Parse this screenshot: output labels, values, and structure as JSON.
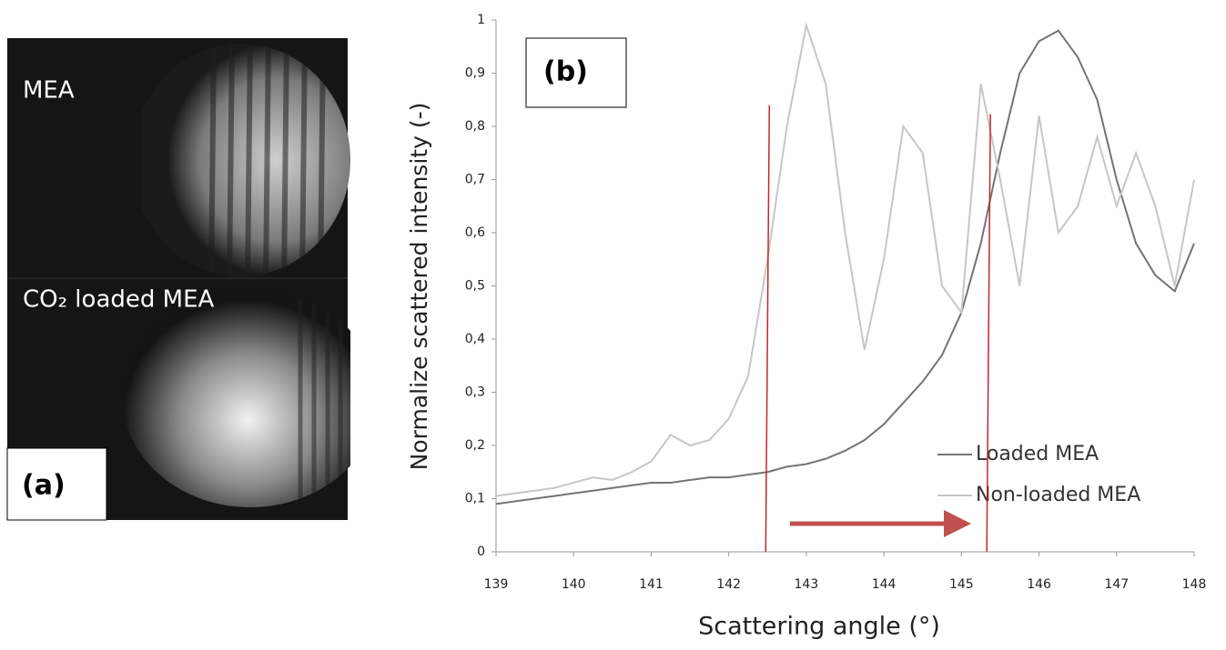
{
  "image_panel": {
    "top_label": "MEA",
    "bottom_label": "CO₂ loaded MEA",
    "panel_label": "(a)"
  },
  "chart_data": {
    "type": "line",
    "panel_label": "(b)",
    "x_label": "Scattering angle (°)",
    "y_label": "Normalize scattered intensity (-)",
    "x": [
      139,
      139.25,
      139.5,
      139.75,
      140,
      140.25,
      140.5,
      140.75,
      141,
      141.25,
      141.5,
      141.75,
      142,
      142.25,
      142.5,
      142.75,
      143,
      143.25,
      143.5,
      143.75,
      144,
      144.25,
      144.5,
      144.75,
      145,
      145.25,
      145.5,
      145.75,
      146,
      146.25,
      146.5,
      146.75,
      147,
      147.25,
      147.5,
      147.75,
      148
    ],
    "series": [
      {
        "name": "Loaded MEA",
        "color": "#747474",
        "values": [
          0.09,
          0.095,
          0.1,
          0.105,
          0.11,
          0.115,
          0.12,
          0.125,
          0.13,
          0.13,
          0.135,
          0.14,
          0.14,
          0.145,
          0.15,
          0.16,
          0.165,
          0.175,
          0.19,
          0.21,
          0.24,
          0.28,
          0.32,
          0.37,
          0.45,
          0.58,
          0.75,
          0.9,
          0.96,
          0.98,
          0.93,
          0.85,
          0.7,
          0.58,
          0.52,
          0.49,
          0.58
        ]
      },
      {
        "name": "Non-loaded MEA",
        "color": "#c6c6c6",
        "values": [
          0.105,
          0.11,
          0.115,
          0.12,
          0.13,
          0.14,
          0.135,
          0.15,
          0.17,
          0.22,
          0.2,
          0.21,
          0.25,
          0.33,
          0.55,
          0.8,
          0.99,
          0.88,
          0.6,
          0.38,
          0.55,
          0.8,
          0.75,
          0.5,
          0.45,
          0.88,
          0.7,
          0.5,
          0.82,
          0.6,
          0.65,
          0.78,
          0.65,
          0.75,
          0.65,
          0.5,
          0.7
        ]
      }
    ],
    "reference_lines": [
      142.5,
      145.35
    ],
    "reference_color": "#c0282c",
    "arrow_color": "#c0504d",
    "xlim": [
      139,
      148
    ],
    "xticks": [
      139,
      140,
      141,
      142,
      143,
      144,
      145,
      146,
      147,
      148
    ],
    "ylim": [
      0,
      1
    ],
    "yticks": [
      0,
      {
        "value": 0.1,
        "label": "0,1"
      },
      {
        "value": 0.2,
        "label": "0,2"
      },
      {
        "value": 0.3,
        "label": "0,3"
      },
      {
        "value": 0.4,
        "label": "0,4"
      },
      {
        "value": 0.5,
        "label": "0,5"
      },
      {
        "value": 0.6,
        "label": "0,6"
      },
      {
        "value": 0.7,
        "label": "0,7"
      },
      {
        "value": 0.8,
        "label": "0,8"
      },
      {
        "value": 0.9,
        "label": "0,9"
      },
      1
    ],
    "grid": false
  }
}
